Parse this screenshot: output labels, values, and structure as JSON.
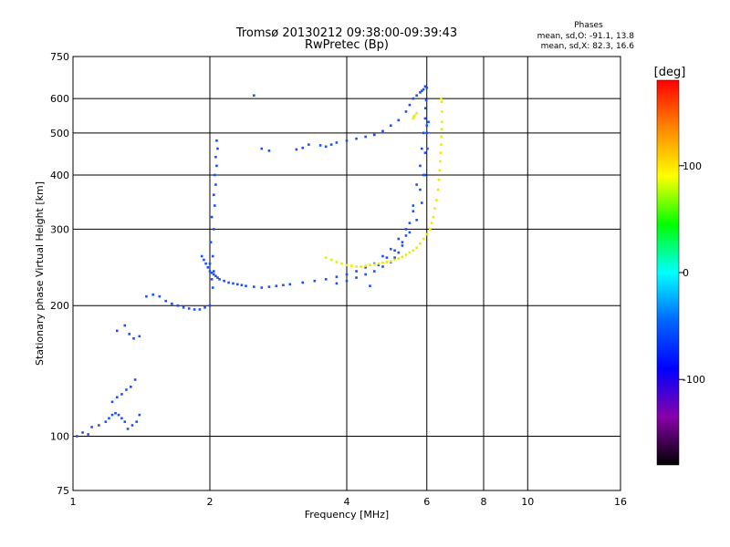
{
  "chart_data": {
    "type": "scatter",
    "title": "Tromsø 20130212 09:38:00-09:39:43",
    "subtitle": "RwPretec (Bp)",
    "stats_header": "Phases",
    "stats_o": "mean, sd,O: -91.1, 13.8",
    "stats_x": "mean, sd,X:  82.3, 16.6",
    "xlabel": "Frequency [MHz]",
    "ylabel": "Stationary phase Virtual Height [km]",
    "x_scale": "log",
    "y_scale": "log",
    "xlim": [
      1,
      16
    ],
    "ylim": [
      75,
      750
    ],
    "x_ticks": [
      1,
      2,
      4,
      6,
      8,
      10,
      16
    ],
    "y_ticks": [
      75,
      100,
      200,
      300,
      400,
      500,
      600,
      750
    ],
    "grid": true,
    "colorbar": {
      "label": "[deg]",
      "range": [
        -180,
        180
      ],
      "ticks": [
        100,
        0,
        -100
      ],
      "colors": [
        "#ff0000",
        "#ff8800",
        "#ffff00",
        "#00ff00",
        "#00ffff",
        "#0066ff",
        "#0000ff",
        "#8800aa",
        "#000000"
      ]
    },
    "series": [
      {
        "phase": "O",
        "color": "#1a4fff",
        "x": [
          1.02,
          1.05,
          1.08,
          1.1,
          1.14,
          1.18,
          1.2,
          1.22,
          1.24,
          1.26,
          1.28,
          1.3,
          1.32,
          1.35,
          1.38,
          1.4,
          1.22,
          1.25,
          1.28,
          1.31,
          1.34,
          1.37,
          1.25,
          1.3,
          1.33,
          1.36,
          1.4,
          1.45,
          1.5,
          1.55,
          1.6,
          1.65,
          1.7,
          1.75,
          1.8,
          1.85,
          1.9,
          1.95,
          2.0,
          2.02,
          2.03,
          2.04,
          2.05,
          2.06,
          2.07,
          2.08,
          2.0,
          2.01,
          2.02,
          2.04,
          2.05,
          2.06,
          2.07,
          2.03,
          2.04,
          1.92,
          1.94,
          1.96,
          1.98,
          2.0,
          2.02,
          2.04,
          2.06,
          2.08,
          2.1,
          2.15,
          2.2,
          2.25,
          2.3,
          2.35,
          2.4,
          2.5,
          2.6,
          2.7,
          2.8,
          2.9,
          3.0,
          3.2,
          3.4,
          3.6,
          3.8,
          4.0,
          4.2,
          4.4,
          4.6,
          4.8,
          5.0,
          5.2,
          5.4,
          5.6,
          5.8,
          5.9,
          5.95,
          6.0,
          6.0,
          5.95,
          5.9,
          5.85,
          5.8,
          5.7,
          5.6,
          5.5,
          5.4,
          5.3,
          5.2,
          5.1,
          5.0,
          4.8,
          4.6,
          4.4,
          4.2,
          4.0,
          3.8,
          4.5,
          4.7,
          4.9,
          5.1,
          5.3,
          5.5,
          5.7,
          5.85,
          5.95,
          6.02,
          6.05,
          5.96,
          5.98,
          2.5,
          2.6,
          2.7,
          3.1,
          3.2,
          3.3,
          3.5,
          3.6,
          3.7,
          3.8,
          4.0,
          4.2,
          4.4,
          4.6,
          4.8,
          5.0,
          5.2,
          5.4,
          5.5,
          5.6,
          5.7,
          5.8,
          5.85,
          5.9,
          5.95,
          6.0
        ],
        "y": [
          100,
          102,
          101,
          105,
          106,
          108,
          110,
          112,
          113,
          112,
          110,
          108,
          104,
          106,
          108,
          112,
          120,
          123,
          125,
          128,
          130,
          135,
          175,
          180,
          172,
          168,
          170,
          210,
          212,
          210,
          205,
          202,
          200,
          198,
          197,
          196,
          196,
          198,
          200,
          230,
          260,
          300,
          340,
          380,
          420,
          460,
          250,
          280,
          320,
          360,
          400,
          440,
          480,
          220,
          240,
          260,
          255,
          250,
          245,
          240,
          238,
          236,
          234,
          232,
          230,
          228,
          226,
          225,
          224,
          223,
          222,
          221,
          220,
          221,
          222,
          223,
          224,
          226,
          228,
          230,
          233,
          236,
          240,
          245,
          250,
          260,
          270,
          285,
          300,
          330,
          370,
          400,
          450,
          500,
          520,
          540,
          500,
          460,
          420,
          380,
          340,
          310,
          290,
          275,
          265,
          258,
          252,
          246,
          240,
          236,
          232,
          228,
          225,
          222,
          248,
          258,
          268,
          280,
          295,
          315,
          345,
          400,
          460,
          530,
          570,
          595,
          610,
          460,
          455,
          458,
          462,
          470,
          468,
          465,
          470,
          475,
          480,
          485,
          490,
          495,
          505,
          520,
          535,
          560,
          580,
          600,
          610,
          620,
          625,
          630,
          640,
          635
        ],
        "labels": []
      },
      {
        "phase": "X",
        "color": "#e6ee00",
        "x": [
          3.6,
          3.7,
          3.8,
          3.9,
          4.0,
          4.1,
          4.2,
          4.3,
          4.4,
          4.5,
          4.6,
          4.7,
          4.8,
          4.9,
          5.0,
          5.1,
          5.2,
          5.3,
          5.4,
          5.5,
          5.6,
          5.7,
          5.8,
          5.9,
          6.0,
          6.1,
          6.15,
          6.2,
          6.25,
          6.3,
          6.35,
          6.38,
          6.4,
          6.42,
          6.44,
          6.45,
          6.46,
          6.47,
          6.48,
          6.48,
          6.47,
          6.45,
          5.6,
          5.62,
          5.64,
          5.7
        ],
        "y": [
          258,
          255,
          252,
          250,
          248,
          247,
          246,
          246,
          247,
          248,
          249,
          250,
          251,
          252,
          253,
          255,
          257,
          259,
          262,
          265,
          268,
          272,
          278,
          285,
          292,
          300,
          310,
          320,
          335,
          350,
          370,
          390,
          410,
          430,
          450,
          470,
          490,
          510,
          530,
          560,
          590,
          600,
          540,
          545,
          548,
          555
        ],
        "labels": []
      }
    ]
  }
}
